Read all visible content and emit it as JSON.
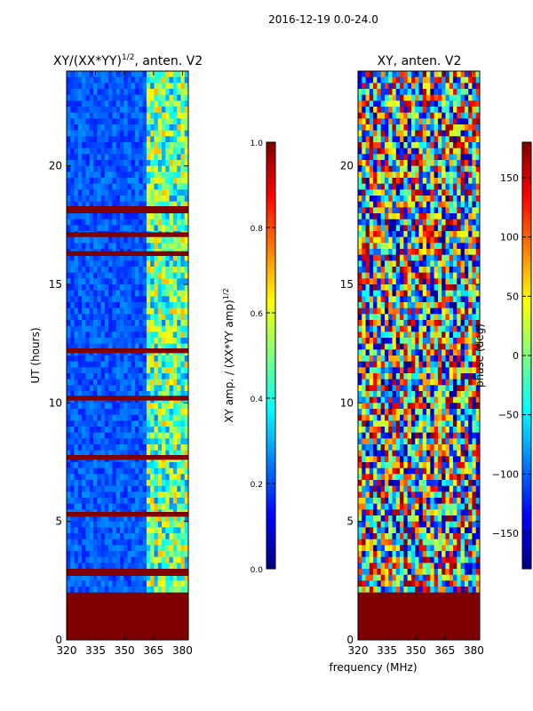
{
  "suptitle": "2016-12-19 0.0-24.0",
  "xlabel_shared": "frequency (MHz)",
  "colors": {
    "jet": [
      "#00007f",
      "#0000ff",
      "#007fff",
      "#00ffff",
      "#7fff7f",
      "#ffff00",
      "#ff7f00",
      "#ff0000",
      "#7f0000"
    ],
    "flag": "#7f0000",
    "axis": "#000000"
  },
  "chart_data": [
    {
      "type": "heatmap",
      "title": "XY/(XX*YY)^{1/2}, anten. V2",
      "title_main": "XY/(XX*YY)",
      "title_exp": "1/2",
      "title_rest": ", anten. V2",
      "xlabel": "",
      "ylabel": "UT (hours)",
      "xlim": [
        320,
        383
      ],
      "ylim": [
        0,
        24
      ],
      "xticks": [
        320,
        335,
        350,
        365,
        380
      ],
      "yticks": [
        0,
        5,
        10,
        15,
        20
      ],
      "colorbar": {
        "label": "XY amp. / (XX*YY amp)^{1/2}",
        "label_main": "XY amp. / (XX*YY amp)",
        "label_exp": "1/2",
        "range": [
          0.0,
          1.0
        ],
        "ticks": [
          "0.0",
          "0.2",
          "0.4",
          "0.6",
          "0.8",
          "1.0"
        ]
      },
      "flagged_bands_hours": [
        [
          0.0,
          2.0
        ],
        [
          2.7,
          3.0
        ],
        [
          5.2,
          5.4
        ],
        [
          7.6,
          7.8
        ],
        [
          10.1,
          10.3
        ],
        [
          12.1,
          12.3
        ],
        [
          16.2,
          16.4
        ],
        [
          17.0,
          17.2
        ],
        [
          18.0,
          18.3
        ]
      ]
    },
    {
      "type": "heatmap",
      "title": "XY, anten. V2",
      "xlabel": "frequency (MHz)",
      "ylabel": "",
      "xlim": [
        320,
        383
      ],
      "ylim": [
        0,
        24
      ],
      "xticks": [
        320,
        335,
        350,
        365,
        380
      ],
      "yticks": [
        0,
        5,
        10,
        15,
        20
      ],
      "colorbar": {
        "label": "phase (deg)",
        "range": [
          -180,
          180
        ],
        "ticks": [
          "−150",
          "−100",
          "−50",
          "0",
          "50",
          "100",
          "150"
        ]
      },
      "flagged_bands_hours": [
        [
          0.0,
          2.0
        ]
      ]
    }
  ]
}
